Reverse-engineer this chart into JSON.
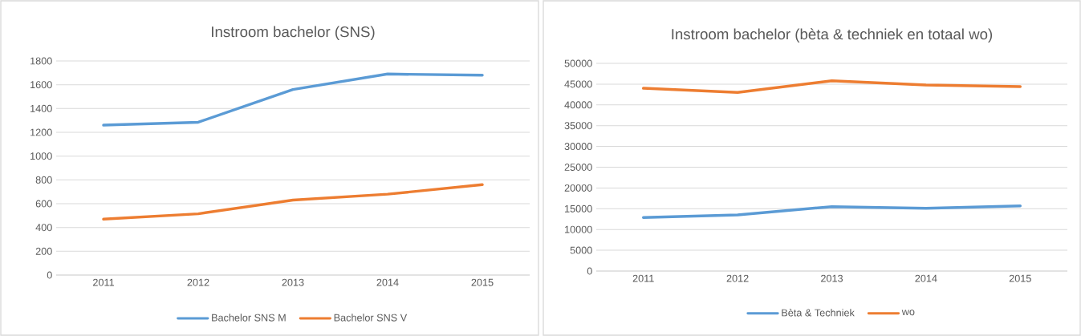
{
  "chart_data": [
    {
      "type": "line",
      "title": "Instroom bachelor (SNS)",
      "categories": [
        "2011",
        "2012",
        "2013",
        "2014",
        "2015"
      ],
      "series": [
        {
          "name": "Bachelor SNS M",
          "color": "#5b9bd5",
          "values": [
            1260,
            1285,
            1560,
            1690,
            1680
          ]
        },
        {
          "name": "Bachelor SNS V",
          "color": "#ed7d31",
          "values": [
            470,
            515,
            630,
            680,
            760
          ]
        }
      ],
      "ylim": [
        0,
        1800
      ],
      "yticks": [
        0,
        200,
        400,
        600,
        800,
        1000,
        1200,
        1400,
        1600,
        1800
      ],
      "grid": "y",
      "legend": "bottom"
    },
    {
      "type": "line",
      "title": "Instroom bachelor (bèta & techniek en totaal wo)",
      "categories": [
        "2011",
        "2012",
        "2013",
        "2014",
        "2015"
      ],
      "series": [
        {
          "name": "Bèta & Techniek",
          "color": "#5b9bd5",
          "values": [
            12900,
            13500,
            15500,
            15100,
            15700
          ]
        },
        {
          "name": "wo",
          "color": "#ed7d31",
          "values": [
            44000,
            43000,
            45800,
            44800,
            44400
          ]
        }
      ],
      "ylim": [
        0,
        50000
      ],
      "yticks": [
        0,
        5000,
        10000,
        15000,
        20000,
        25000,
        30000,
        35000,
        40000,
        45000,
        50000
      ],
      "grid": "y",
      "legend": "bottom"
    }
  ]
}
